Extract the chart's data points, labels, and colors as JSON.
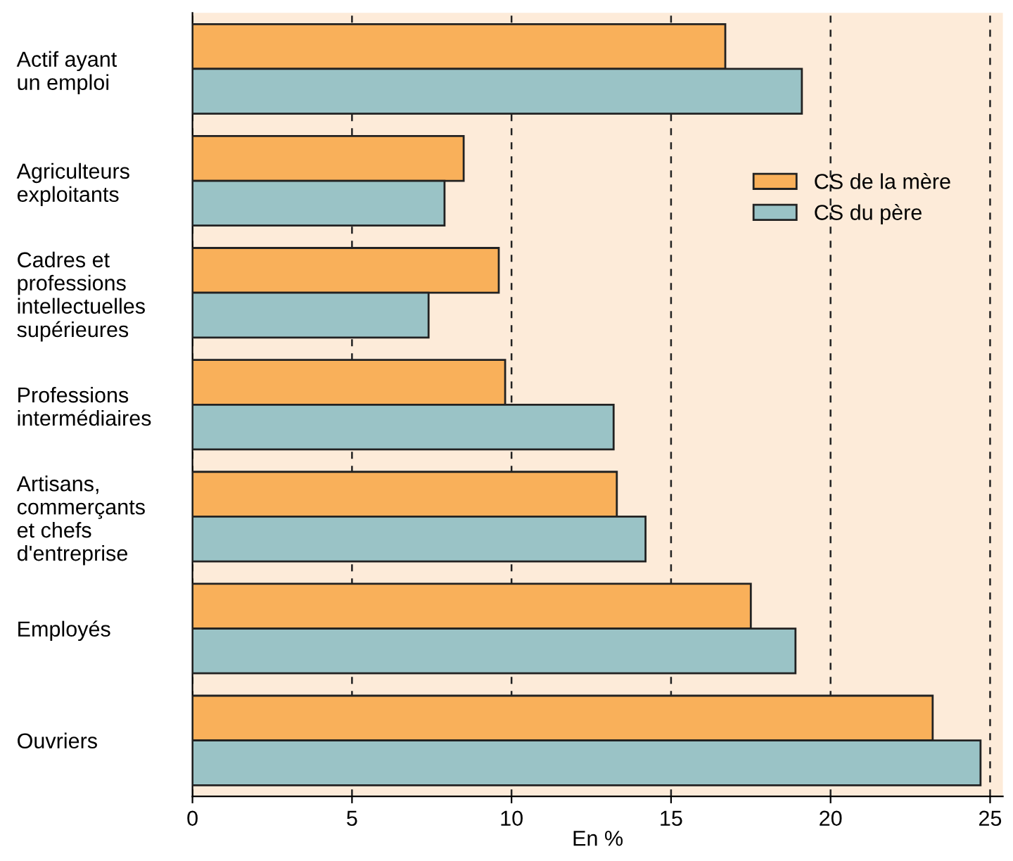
{
  "chart_data": {
    "type": "bar",
    "orientation": "horizontal",
    "xlabel": "En %",
    "categories": [
      "Actif ayant\nun emploi",
      "Agriculteurs\nexploitants",
      "Cadres et\nprofessions\nintellectuelles\nsupérieures",
      "Professions\nintermédiaires",
      "Artisans,\ncommerçants\net chefs\nd'entreprise",
      "Employés",
      "Ouvriers"
    ],
    "series": [
      {
        "name": "CS de la mère",
        "color": "#f9b05a",
        "values": [
          16.7,
          8.5,
          9.6,
          9.8,
          13.3,
          17.5,
          23.2
        ]
      },
      {
        "name": "CS du père",
        "color": "#9ac3c6",
        "values": [
          19.1,
          7.9,
          7.4,
          13.2,
          14.2,
          18.9,
          24.7
        ]
      }
    ],
    "xlim": [
      0,
      25.4
    ],
    "xticks": [
      0,
      5,
      10,
      15,
      20,
      25
    ],
    "grid": "x",
    "legend": "top right"
  }
}
